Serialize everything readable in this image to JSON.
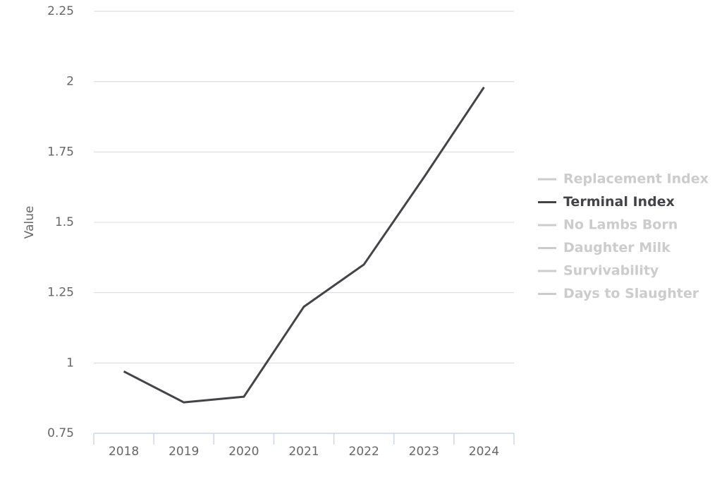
{
  "chart_data": {
    "type": "line",
    "y_axis_label": "Value",
    "categories": [
      "2018",
      "2019",
      "2020",
      "2021",
      "2022",
      "2023",
      "2024"
    ],
    "ylim": [
      0.75,
      2.25
    ],
    "yticks": [
      0.75,
      1,
      1.25,
      1.5,
      1.75,
      2,
      2.25
    ],
    "grid": true,
    "legend": "right",
    "series": [
      {
        "name": "Replacement Index",
        "color": "#cccccc",
        "visible": false
      },
      {
        "name": "Terminal Index",
        "color": "#434348",
        "visible": true,
        "values": [
          0.97,
          0.86,
          0.88,
          1.2,
          1.35,
          1.66,
          1.98
        ]
      },
      {
        "name": "No Lambs Born",
        "color": "#cccccc",
        "visible": false
      },
      {
        "name": "Daughter Milk",
        "color": "#cccccc",
        "visible": false
      },
      {
        "name": "Survivability",
        "color": "#cccccc",
        "visible": false
      },
      {
        "name": "Days to Slaughter",
        "color": "#cccccc",
        "visible": false
      }
    ]
  }
}
